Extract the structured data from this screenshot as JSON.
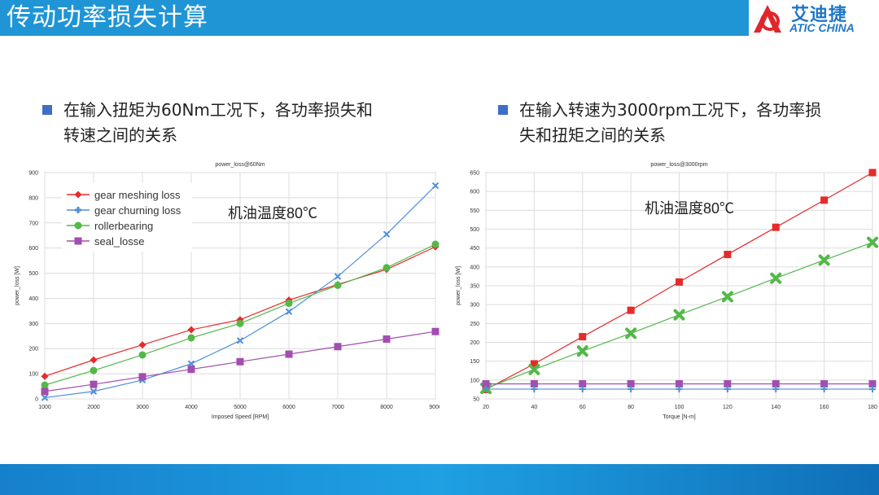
{
  "header": {
    "title": "传动功率损失计算"
  },
  "logo": {
    "cn": "艾迪捷",
    "en": "ATIC CHINA"
  },
  "bullets": [
    {
      "text": "在输入扭矩为60Nm工况下，各功率损失和转速之间的关系"
    },
    {
      "text": "在输入转速为3000rpm工况下，各功率损失和扭矩之间的关系"
    }
  ],
  "chart_data": [
    {
      "type": "line",
      "title": "power_loss@60Nm",
      "xlabel": "Imposed Speed [RPM]",
      "ylabel": "power_loss [W]",
      "annotation": "机油温度80℃",
      "xlim": [
        1000,
        9000
      ],
      "ylim": [
        0,
        900
      ],
      "xticks": [
        1000,
        2000,
        3000,
        4000,
        5000,
        6000,
        7000,
        8000,
        9000
      ],
      "yticks": [
        0,
        100,
        200,
        300,
        400,
        500,
        600,
        700,
        800,
        900
      ],
      "grid": true,
      "legend": "top-left",
      "x": [
        1000,
        2000,
        3000,
        4000,
        5000,
        6000,
        7000,
        8000,
        9000
      ],
      "series": [
        {
          "name": "gear meshing loss",
          "color": "#e52b2b",
          "marker": "diamond",
          "values": [
            90,
            155,
            215,
            275,
            315,
            393,
            455,
            515,
            605
          ]
        },
        {
          "name": "gear churning loss",
          "color": "#4f8fd6",
          "marker": "x",
          "values": [
            5,
            30,
            75,
            140,
            232,
            347,
            487,
            655,
            848
          ]
        },
        {
          "name": "rollerbearing",
          "color": "#53b848",
          "marker": "circle",
          "values": [
            55,
            113,
            175,
            243,
            300,
            380,
            452,
            522,
            615
          ]
        },
        {
          "name": "seal_losse",
          "color": "#a24eb0",
          "marker": "square",
          "values": [
            30,
            58,
            88,
            118,
            148,
            178,
            208,
            238,
            268
          ]
        }
      ]
    },
    {
      "type": "line",
      "title": "power_loss@3000rpm",
      "xlabel": "Torque [N-m]",
      "ylabel": "power_loss [W]",
      "annotation": "机油温度80℃",
      "xlim": [
        20,
        180
      ],
      "ylim": [
        50,
        650
      ],
      "xticks": [
        20,
        40,
        60,
        80,
        100,
        120,
        140,
        160,
        180
      ],
      "yticks": [
        50,
        100,
        150,
        200,
        250,
        300,
        350,
        400,
        450,
        500,
        550,
        600,
        650
      ],
      "grid": true,
      "x": [
        20,
        40,
        60,
        80,
        100,
        120,
        140,
        160,
        180
      ],
      "series": [
        {
          "color": "#e52b2b",
          "marker": "square",
          "values": [
            75,
            143,
            215,
            285,
            360,
            433,
            505,
            577,
            650
          ]
        },
        {
          "color": "#53b848",
          "marker": "cross",
          "values": [
            78,
            128,
            177,
            224,
            273,
            321,
            370,
            418,
            465
          ]
        },
        {
          "color": "#a24eb0",
          "marker": "square",
          "values": [
            90,
            90,
            90,
            90,
            90,
            90,
            90,
            90,
            90
          ]
        },
        {
          "color": "#4f8fd6",
          "marker": "plus",
          "values": [
            76,
            76,
            76,
            76,
            76,
            76,
            76,
            76,
            76
          ]
        }
      ]
    }
  ]
}
